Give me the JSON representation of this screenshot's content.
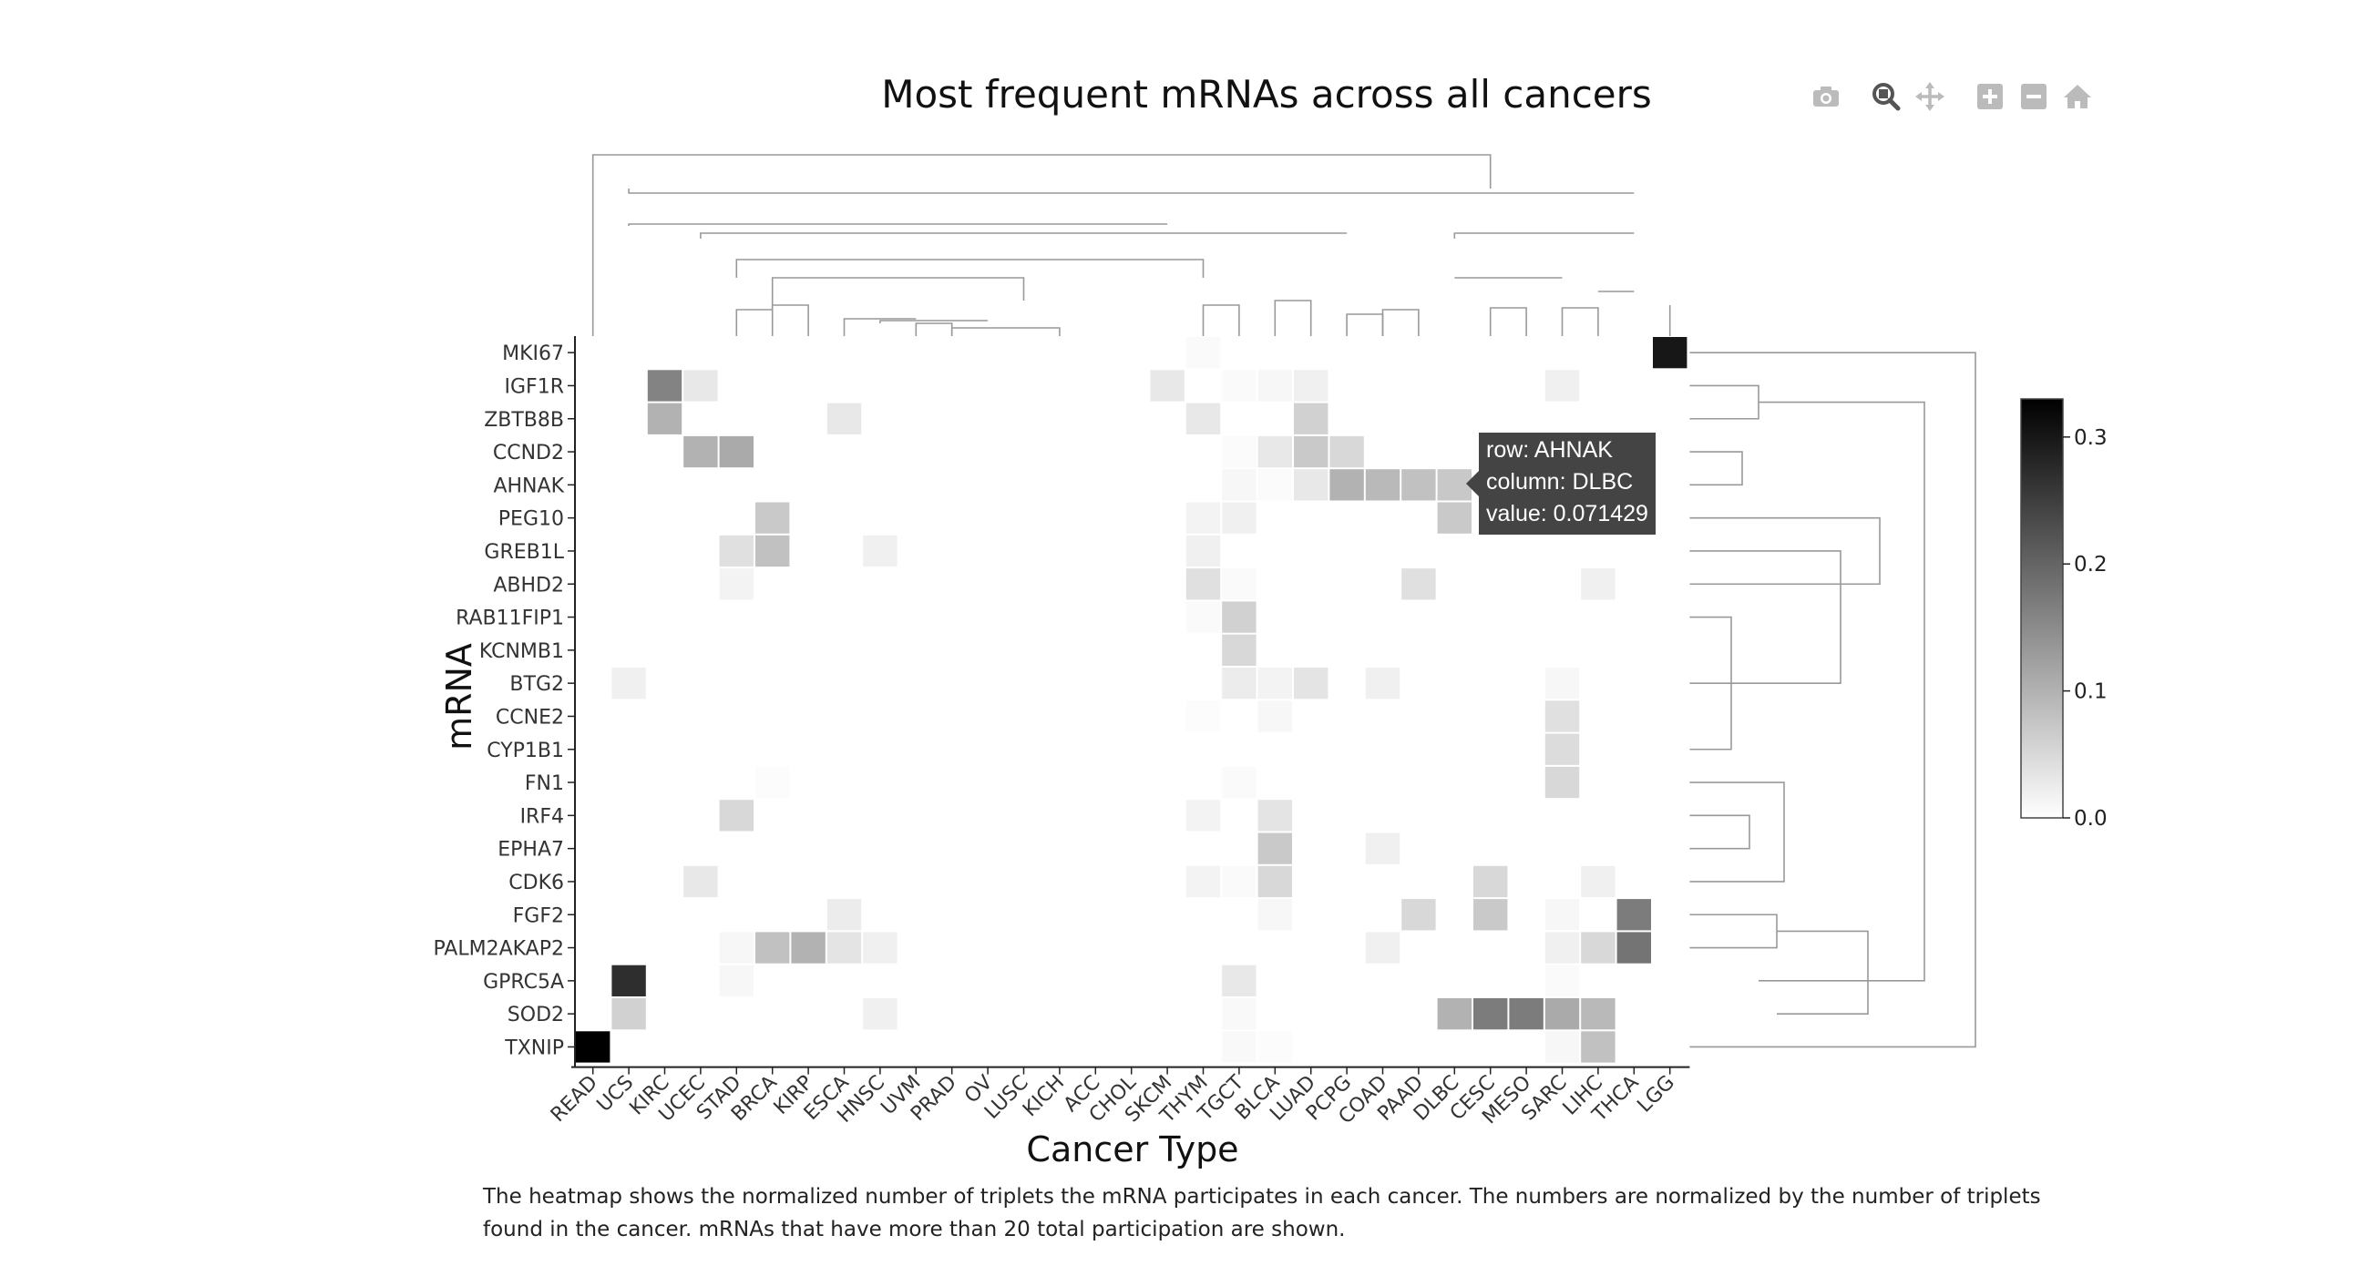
{
  "modebar": {
    "icons": [
      "camera-icon",
      "zoom-icon",
      "pan-icon",
      "zoom-in-icon",
      "zoom-out-icon",
      "home-icon"
    ]
  },
  "tooltip": {
    "row_text": "row: AHNAK",
    "column_text": "column: DLBC",
    "value_text": "value: 0.071429"
  },
  "caption": "The heatmap shows the normalized number of triplets the mRNA participates in each cancer. The numbers are normalized by the number of triplets found in the cancer. mRNAs that have more than 20 total participation are shown.",
  "chart_data": {
    "type": "heatmap",
    "title": "Most frequent mRNAs across all cancers",
    "xlabel": "Cancer Type",
    "ylabel": "mRNA",
    "columns": [
      "READ",
      "UCS",
      "KIRC",
      "UCEC",
      "STAD",
      "BRCA",
      "KIRP",
      "ESCA",
      "HNSC",
      "UVM",
      "PRAD",
      "OV",
      "LUSC",
      "KICH",
      "ACC",
      "CHOL",
      "SKCM",
      "THYM",
      "TGCT",
      "BLCA",
      "LUAD",
      "PCPG",
      "COAD",
      "PAAD",
      "DLBC",
      "CESC",
      "MESO",
      "SARC",
      "LIHC",
      "THCA",
      "LGG"
    ],
    "rows": [
      "MKI67",
      "IGF1R",
      "ZBTB8B",
      "CCND2",
      "AHNAK",
      "PEG10",
      "GREB1L",
      "ABHD2",
      "RAB11FIP1",
      "KCNMB1",
      "BTG2",
      "CCNE2",
      "CYP1B1",
      "FN1",
      "IRF4",
      "EPHA7",
      "CDK6",
      "FGF2",
      "PALM2AKAP2",
      "GPRC5A",
      "SOD2",
      "TXNIP"
    ],
    "values": [
      [
        0,
        0,
        0,
        0,
        0,
        0,
        0,
        0,
        0,
        0,
        0,
        0,
        0,
        0,
        0,
        0,
        0,
        0.006,
        0,
        0,
        0,
        0,
        0,
        0,
        0,
        0,
        0,
        0,
        0,
        0,
        0.3
      ],
      [
        0,
        0,
        0.16,
        0.03,
        0,
        0,
        0,
        0,
        0,
        0,
        0,
        0,
        0,
        0,
        0,
        0,
        0.03,
        0,
        0.006,
        0.01,
        0.02,
        0,
        0,
        0,
        0,
        0,
        0,
        0.02,
        0,
        0,
        0
      ],
      [
        0,
        0,
        0.1,
        0,
        0,
        0,
        0,
        0.03,
        0,
        0,
        0,
        0,
        0,
        0,
        0,
        0,
        0,
        0.03,
        0,
        0,
        0.06,
        0,
        0,
        0,
        0,
        0,
        0,
        0,
        0,
        0,
        0
      ],
      [
        0,
        0,
        0,
        0.1,
        0.11,
        0,
        0,
        0,
        0,
        0,
        0,
        0,
        0,
        0,
        0,
        0,
        0,
        0,
        0.005,
        0.03,
        0.07,
        0.05,
        0,
        0,
        0,
        0,
        0,
        0,
        0,
        0,
        0
      ],
      [
        0,
        0,
        0,
        0,
        0,
        0,
        0,
        0,
        0,
        0,
        0,
        0,
        0,
        0,
        0,
        0,
        0,
        0,
        0.01,
        0.005,
        0.03,
        0.1,
        0.09,
        0.08,
        0.071429,
        0,
        0,
        0,
        0,
        0,
        0
      ],
      [
        0,
        0,
        0,
        0,
        0,
        0.07,
        0,
        0,
        0,
        0,
        0,
        0,
        0,
        0,
        0,
        0,
        0,
        0.015,
        0.02,
        0,
        0,
        0,
        0,
        0,
        0.07,
        0,
        0,
        0,
        0,
        0,
        0
      ],
      [
        0,
        0,
        0,
        0,
        0.04,
        0.08,
        0,
        0,
        0.02,
        0,
        0,
        0,
        0,
        0,
        0,
        0,
        0,
        0.02,
        0,
        0,
        0,
        0,
        0,
        0,
        0,
        0,
        0,
        0,
        0,
        0,
        0
      ],
      [
        0,
        0,
        0,
        0,
        0.015,
        0,
        0,
        0,
        0,
        0,
        0,
        0,
        0,
        0,
        0,
        0,
        0,
        0.04,
        0.006,
        0,
        0,
        0,
        0,
        0.04,
        0,
        0,
        0,
        0,
        0.02,
        0,
        0
      ],
      [
        0,
        0,
        0,
        0,
        0,
        0,
        0,
        0,
        0,
        0,
        0,
        0,
        0,
        0,
        0,
        0,
        0,
        0.006,
        0.06,
        0,
        0,
        0,
        0,
        0,
        0,
        0,
        0,
        0,
        0,
        0,
        0
      ],
      [
        0,
        0,
        0,
        0,
        0,
        0,
        0,
        0,
        0,
        0,
        0,
        0,
        0,
        0,
        0,
        0,
        0,
        0,
        0.05,
        0,
        0,
        0,
        0,
        0,
        0,
        0,
        0,
        0,
        0,
        0,
        0
      ],
      [
        0,
        0.02,
        0,
        0,
        0,
        0,
        0,
        0,
        0,
        0,
        0,
        0,
        0,
        0,
        0,
        0,
        0,
        0,
        0.025,
        0.015,
        0.035,
        0,
        0.02,
        0,
        0,
        0,
        0,
        0.01,
        0,
        0,
        0
      ],
      [
        0,
        0,
        0,
        0,
        0,
        0,
        0,
        0,
        0,
        0,
        0,
        0,
        0,
        0,
        0,
        0,
        0,
        0.004,
        0,
        0.01,
        0,
        0,
        0,
        0,
        0,
        0,
        0,
        0.04,
        0,
        0,
        0
      ],
      [
        0,
        0,
        0,
        0,
        0,
        0,
        0,
        0,
        0,
        0,
        0,
        0,
        0,
        0,
        0,
        0,
        0,
        0,
        0,
        0,
        0,
        0,
        0,
        0,
        0,
        0,
        0,
        0.045,
        0,
        0,
        0
      ],
      [
        0,
        0,
        0,
        0,
        0,
        0.004,
        0,
        0,
        0,
        0,
        0,
        0,
        0,
        0,
        0,
        0,
        0,
        0,
        0.006,
        0,
        0,
        0,
        0,
        0,
        0,
        0,
        0,
        0.05,
        0,
        0,
        0
      ],
      [
        0,
        0,
        0,
        0,
        0.05,
        0,
        0,
        0,
        0,
        0,
        0,
        0,
        0,
        0,
        0,
        0,
        0,
        0.015,
        0,
        0.035,
        0,
        0,
        0,
        0,
        0,
        0,
        0,
        0,
        0,
        0,
        0
      ],
      [
        0,
        0,
        0,
        0,
        0,
        0,
        0,
        0,
        0,
        0,
        0,
        0,
        0,
        0,
        0,
        0,
        0,
        0,
        0,
        0.07,
        0,
        0,
        0.02,
        0,
        0,
        0,
        0,
        0,
        0,
        0,
        0
      ],
      [
        0,
        0,
        0,
        0.03,
        0,
        0,
        0,
        0,
        0,
        0,
        0,
        0,
        0,
        0,
        0,
        0,
        0,
        0.015,
        0.006,
        0.05,
        0,
        0,
        0,
        0,
        0,
        0.05,
        0,
        0,
        0.02,
        0,
        0
      ],
      [
        0,
        0,
        0,
        0,
        0,
        0,
        0,
        0.025,
        0,
        0,
        0,
        0,
        0,
        0,
        0,
        0,
        0,
        0,
        0,
        0.01,
        0,
        0,
        0,
        0.05,
        0,
        0.07,
        0,
        0.01,
        0,
        0.17,
        0
      ],
      [
        0,
        0,
        0,
        0,
        0.01,
        0.08,
        0.1,
        0.035,
        0.02,
        0,
        0,
        0,
        0,
        0,
        0,
        0,
        0,
        0,
        0,
        0,
        0,
        0,
        0.02,
        0,
        0,
        0,
        0,
        0.02,
        0.05,
        0.18,
        0
      ],
      [
        0,
        0.27,
        0,
        0,
        0.01,
        0,
        0,
        0,
        0,
        0,
        0,
        0,
        0,
        0,
        0,
        0,
        0,
        0,
        0.03,
        0,
        0,
        0,
        0,
        0,
        0,
        0,
        0,
        0.006,
        0,
        0,
        0
      ],
      [
        0,
        0.06,
        0,
        0,
        0,
        0,
        0,
        0,
        0.02,
        0,
        0,
        0,
        0,
        0,
        0,
        0,
        0,
        0,
        0.008,
        0,
        0,
        0,
        0,
        0,
        0.1,
        0.17,
        0.17,
        0.11,
        0.09,
        0,
        0
      ],
      [
        0.35,
        0,
        0,
        0,
        0,
        0,
        0,
        0,
        0,
        0,
        0,
        0,
        0,
        0,
        0,
        0,
        0,
        0,
        0.008,
        0.004,
        0,
        0,
        0,
        0,
        0,
        0,
        0,
        0.01,
        0.08,
        0,
        0
      ]
    ],
    "colorscale": [
      "#ffffff",
      "#000000"
    ],
    "zrange": [
      0,
      0.33
    ],
    "colorbar_ticks": [
      "0.0",
      "0.1",
      "0.2",
      "0.3"
    ],
    "colorbar_tick_values": [
      0,
      0.1,
      0.2,
      0.3
    ],
    "dendrograms": "column dendrogram top, row dendrogram right"
  }
}
